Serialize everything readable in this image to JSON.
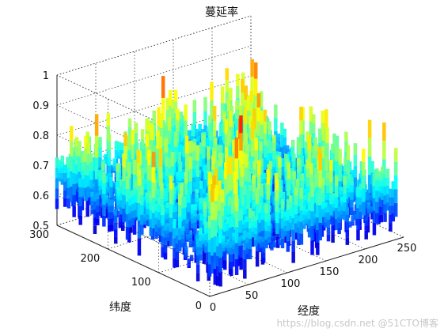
{
  "chart_data": {
    "type": "surface",
    "title": "蔓延率",
    "xlabel": "经度",
    "ylabel": "纬度",
    "zlabel": "",
    "xlim": [
      0,
      250
    ],
    "ylim": [
      0,
      300
    ],
    "zlim": [
      0.5,
      1
    ],
    "x_ticks": [
      "0",
      "50",
      "100",
      "150",
      "200",
      "250"
    ],
    "y_ticks": [
      "0",
      "100",
      "200",
      "300"
    ],
    "z_ticks": [
      "0.5",
      "0.6",
      "0.7",
      "0.8",
      "0.9",
      "1"
    ],
    "x_tick_values": [
      0,
      50,
      100,
      150,
      200,
      250
    ],
    "y_tick_values": [
      0,
      100,
      200,
      300
    ],
    "z_tick_values": [
      0.5,
      0.6,
      0.7,
      0.8,
      0.9,
      1
    ],
    "grid": true,
    "colormap": "jet",
    "surface": {
      "x_range": [
        0,
        240
      ],
      "y_range": [
        0,
        300
      ],
      "z_range": [
        0.5,
        1.0
      ],
      "typical_z": 0.72
    }
  },
  "watermark": "https://blog.csdn.net @51CTO博客"
}
